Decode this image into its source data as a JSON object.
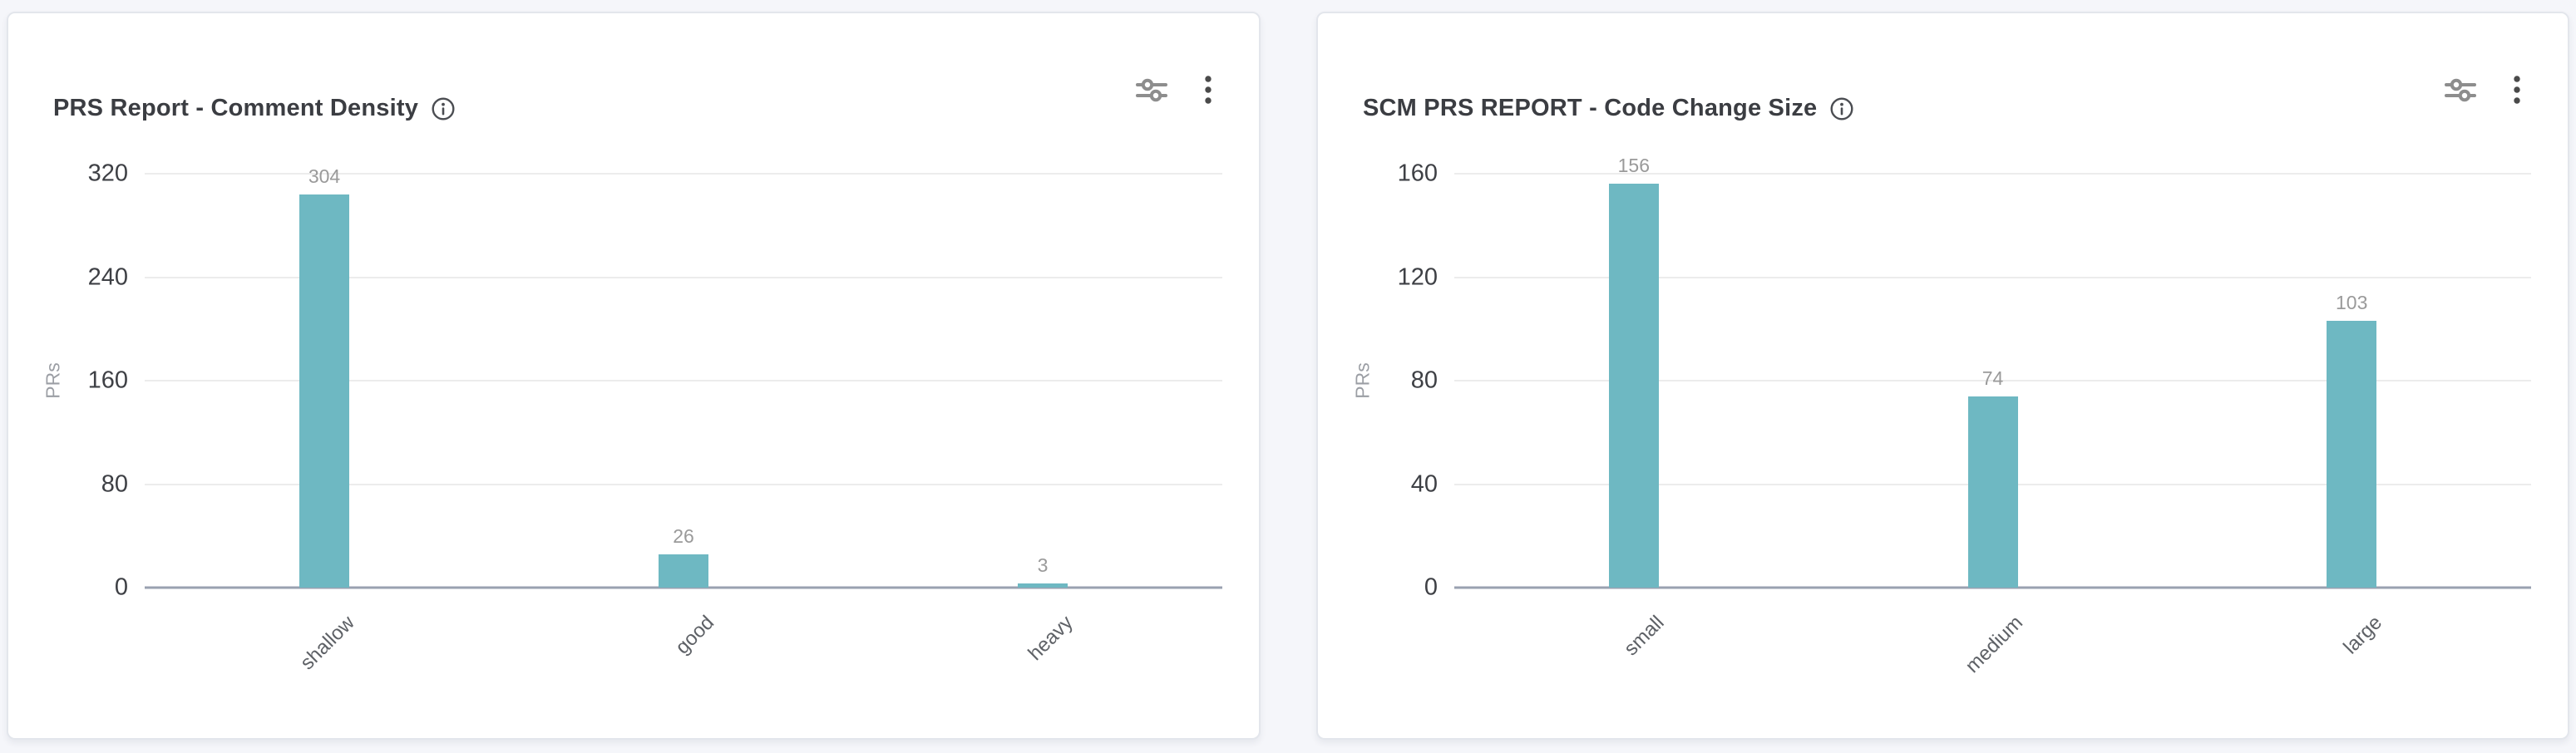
{
  "page": {
    "background": "#f5f6fa",
    "card_background": "#ffffff"
  },
  "cards": [
    {
      "title": "PRS Report - Comment Density",
      "icons": {
        "info": "info-circle-icon",
        "filter": "filter-sliders-icon",
        "menu": "kebab-menu-icon"
      }
    },
    {
      "title": "SCM PRS REPORT - Code Change Size",
      "icons": {
        "info": "info-circle-icon",
        "filter": "filter-sliders-icon",
        "menu": "kebab-menu-icon"
      }
    }
  ],
  "chart_data": [
    {
      "type": "bar",
      "title": "PRS Report - Comment Density",
      "categories": [
        "shallow",
        "good",
        "heavy"
      ],
      "values": [
        304,
        26,
        3
      ],
      "xlabel": "",
      "ylabel": "PRs",
      "yticks": [
        0,
        80,
        160,
        240,
        320
      ],
      "ylim": [
        0,
        320
      ],
      "grid": true,
      "legend": "none",
      "bar_color": "#6eb8c2",
      "value_label_color": "#9a9a9a",
      "tick_label_color": "#3e4045",
      "category_label_rotation_deg": -45
    },
    {
      "type": "bar",
      "title": "SCM PRS REPORT - Code Change Size",
      "categories": [
        "small",
        "medium",
        "large"
      ],
      "values": [
        156,
        74,
        103
      ],
      "xlabel": "",
      "ylabel": "PRs",
      "yticks": [
        0,
        40,
        80,
        120,
        160
      ],
      "ylim": [
        0,
        160
      ],
      "grid": true,
      "legend": "none",
      "bar_color": "#6eb8c2",
      "value_label_color": "#9a9a9a",
      "tick_label_color": "#3e4045",
      "category_label_rotation_deg": -45
    }
  ]
}
